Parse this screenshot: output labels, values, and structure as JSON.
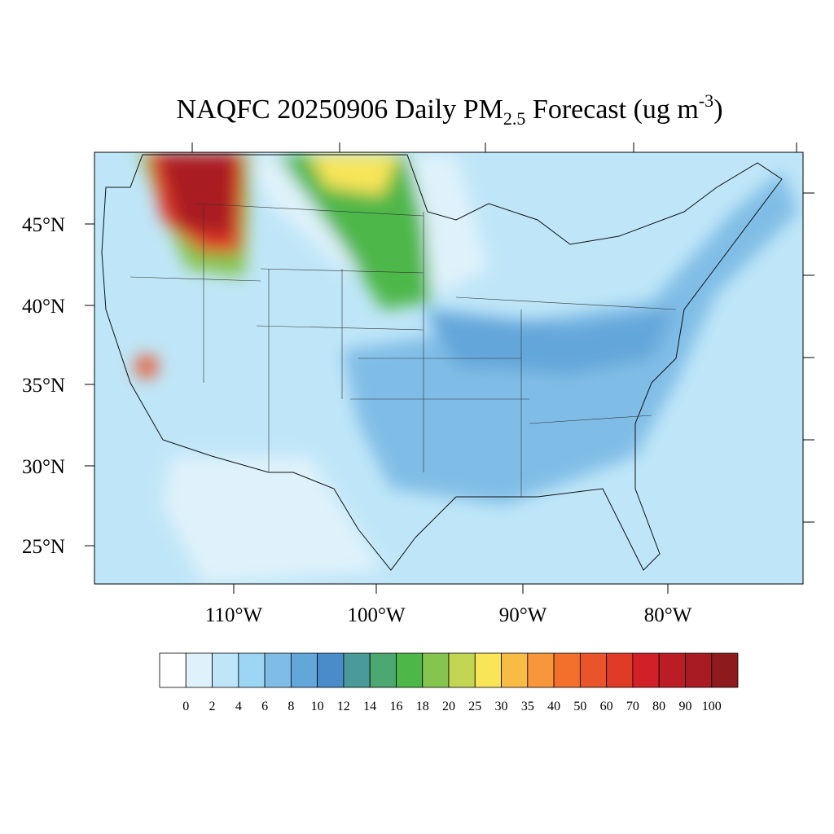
{
  "map": {
    "title": {
      "main": "NAQFC 20250906 Daily PM",
      "sub": "2.5",
      "rest": " Forecast (ug m",
      "sup": "-3",
      "end": ")"
    },
    "lat_labels": [
      "45°N",
      "40°N",
      "35°N",
      "30°N",
      "25°N"
    ],
    "lon_labels": [
      "110°W",
      "100°W",
      "90°W",
      "80°W"
    ],
    "colorbar": {
      "colors": [
        "#ffffff",
        "#dff2fb",
        "#bfe6f8",
        "#9dd6f4",
        "#80bde6",
        "#63a6da",
        "#4a8cc9",
        "#4a9a9a",
        "#4aa870",
        "#4db748",
        "#85c44e",
        "#c2d654",
        "#f8e558",
        "#f8bc45",
        "#f7963b",
        "#f26f2c",
        "#e9542b",
        "#df3b27",
        "#d22029",
        "#bb1d27",
        "#a91b22",
        "#8f1a1e"
      ],
      "labels": [
        0,
        2,
        4,
        6,
        8,
        10,
        12,
        14,
        16,
        18,
        20,
        25,
        30,
        35,
        40,
        50,
        60,
        70,
        80,
        90,
        100
      ]
    }
  }
}
